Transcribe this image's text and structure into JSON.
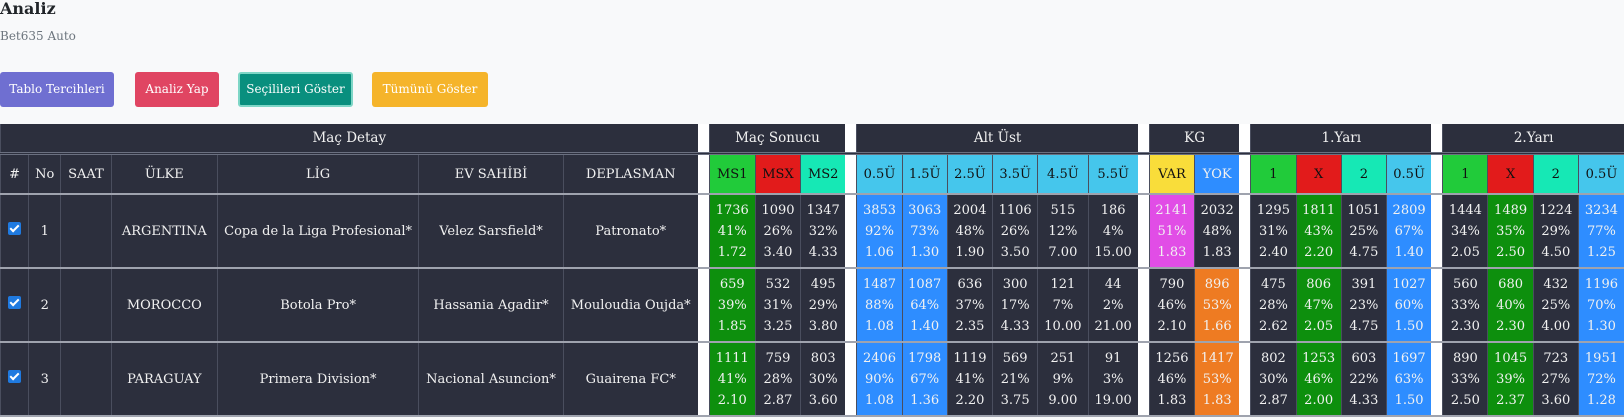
{
  "header": {
    "title": "Analiz",
    "subtitle": "Bet635 Auto"
  },
  "buttons": {
    "prefs": "Tablo Tercihleri",
    "analyze": "Analiz Yap",
    "show_selected": "Seçilileri Göster",
    "show_all": "Tümünü Göster"
  },
  "groups": {
    "match_detail": "Maç Detay",
    "match_result": "Maç Sonucu",
    "over_under": "Alt Üst",
    "kg": "KG",
    "first_half": "1.Yarı",
    "second_half": "2.Yarı"
  },
  "columns": {
    "hash": "#",
    "no": "No",
    "time": "SAAT",
    "country": "ÜLKE",
    "league": "LİG",
    "home": "EV SAHİBİ",
    "away": "DEPLASMAN",
    "ms1": "MS1",
    "msx": "MSX",
    "ms2": "MS2",
    "o05": "0.5Ü",
    "o15": "1.5Ü",
    "o25": "2.5Ü",
    "o35": "3.5Ü",
    "o45": "4.5Ü",
    "o55": "5.5Ü",
    "var": "VAR",
    "yok": "YOK",
    "h1_1": "1",
    "h1_x": "X",
    "h1_2": "2",
    "h1_o05": "0.5Ü",
    "h2_1": "1",
    "h2_x": "X",
    "h2_2": "2",
    "h2_o05": "0.5Ü"
  },
  "rows": [
    {
      "selected": true,
      "no": "1",
      "time": "",
      "country": "ARGENTINA",
      "league": "Copa de la Liga Profesional*",
      "home": "Velez Sarsfield*",
      "away": "Patronato*",
      "c": [
        [
          "1736",
          "41%",
          "1.72"
        ],
        [
          "1090",
          "26%",
          "3.40"
        ],
        [
          "1347",
          "32%",
          "4.33"
        ],
        [
          "3853",
          "92%",
          "1.06"
        ],
        [
          "3063",
          "73%",
          "1.30"
        ],
        [
          "2004",
          "48%",
          "1.90"
        ],
        [
          "1106",
          "26%",
          "3.50"
        ],
        [
          "515",
          "12%",
          "7.00"
        ],
        [
          "186",
          "4%",
          "15.00"
        ],
        [
          "2141",
          "51%",
          "1.83"
        ],
        [
          "2032",
          "48%",
          "1.83"
        ],
        [
          "1295",
          "31%",
          "2.40"
        ],
        [
          "1811",
          "43%",
          "2.20"
        ],
        [
          "1051",
          "25%",
          "4.75"
        ],
        [
          "2809",
          "67%",
          "1.40"
        ],
        [
          "1444",
          "34%",
          "2.05"
        ],
        [
          "1489",
          "35%",
          "2.50"
        ],
        [
          "1224",
          "29%",
          "4.50"
        ],
        [
          "3234",
          "77%",
          "1.25"
        ]
      ]
    },
    {
      "selected": true,
      "no": "2",
      "time": "",
      "country": "MOROCCO",
      "league": "Botola Pro*",
      "home": "Hassania Agadir*",
      "away": "Mouloudia Oujda*",
      "c": [
        [
          "659",
          "39%",
          "1.85"
        ],
        [
          "532",
          "31%",
          "3.25"
        ],
        [
          "495",
          "29%",
          "3.80"
        ],
        [
          "1487",
          "88%",
          "1.08"
        ],
        [
          "1087",
          "64%",
          "1.40"
        ],
        [
          "636",
          "37%",
          "2.35"
        ],
        [
          "300",
          "17%",
          "4.33"
        ],
        [
          "121",
          "7%",
          "10.00"
        ],
        [
          "44",
          "2%",
          "21.00"
        ],
        [
          "790",
          "46%",
          "2.10"
        ],
        [
          "896",
          "53%",
          "1.66"
        ],
        [
          "475",
          "28%",
          "2.62"
        ],
        [
          "806",
          "47%",
          "2.05"
        ],
        [
          "391",
          "23%",
          "4.75"
        ],
        [
          "1027",
          "60%",
          "1.50"
        ],
        [
          "560",
          "33%",
          "2.30"
        ],
        [
          "680",
          "40%",
          "2.30"
        ],
        [
          "432",
          "25%",
          "4.00"
        ],
        [
          "1196",
          "70%",
          "1.30"
        ]
      ]
    },
    {
      "selected": true,
      "no": "3",
      "time": "",
      "country": "PARAGUAY",
      "league": "Primera Division*",
      "home": "Nacional Asuncion*",
      "away": "Guairena FC*",
      "c": [
        [
          "1111",
          "41%",
          "2.10"
        ],
        [
          "759",
          "28%",
          "2.87"
        ],
        [
          "803",
          "30%",
          "3.60"
        ],
        [
          "2406",
          "90%",
          "1.08"
        ],
        [
          "1798",
          "67%",
          "1.36"
        ],
        [
          "1119",
          "41%",
          "2.20"
        ],
        [
          "569",
          "21%",
          "3.75"
        ],
        [
          "251",
          "9%",
          "9.00"
        ],
        [
          "91",
          "3%",
          "19.00"
        ],
        [
          "1256",
          "46%",
          "1.83"
        ],
        [
          "1417",
          "53%",
          "1.83"
        ],
        [
          "802",
          "30%",
          "2.87"
        ],
        [
          "1253",
          "46%",
          "2.00"
        ],
        [
          "603",
          "22%",
          "4.33"
        ],
        [
          "1697",
          "63%",
          "1.50"
        ],
        [
          "890",
          "33%",
          "2.50"
        ],
        [
          "1045",
          "39%",
          "2.37"
        ],
        [
          "723",
          "27%",
          "3.60"
        ],
        [
          "1951",
          "72%",
          "1.28"
        ]
      ]
    }
  ],
  "highlights": [
    [
      "g",
      "",
      "",
      "bl",
      "bl",
      "",
      "",
      "",
      "",
      "m",
      "",
      "",
      "g",
      "",
      "bl",
      "",
      "g",
      "",
      "bl"
    ],
    [
      "g",
      "",
      "",
      "bl",
      "bl",
      "",
      "",
      "",
      "",
      "",
      "o",
      "",
      "g",
      "",
      "bl",
      "",
      "g",
      "",
      "bl"
    ],
    [
      "g",
      "",
      "",
      "bl",
      "bl",
      "",
      "",
      "",
      "",
      "",
      "o",
      "",
      "g",
      "",
      "bl",
      "",
      "g",
      "",
      "bl"
    ]
  ]
}
